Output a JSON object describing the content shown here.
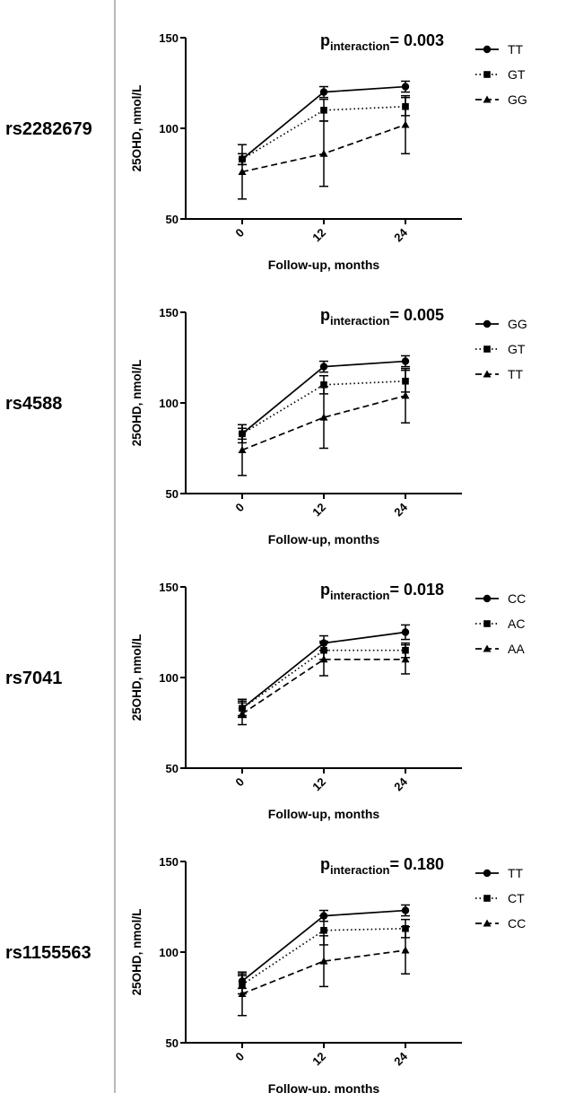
{
  "chart_data": [
    {
      "type": "line",
      "snp": "rs2282679",
      "p_label": "p",
      "p_sub": "interaction",
      "p_value": "= 0.003",
      "ylabel": "25OHD, nmol/L",
      "xlabel": "Follow-up, months",
      "categories": [
        "0",
        "12",
        "24"
      ],
      "ylim": [
        50,
        150
      ],
      "yticks": [
        "50",
        "100",
        "150"
      ],
      "series": [
        {
          "name": "TT",
          "marker": "circle",
          "dash": "solid",
          "values": [
            83,
            120,
            123
          ],
          "err": [
            3,
            3,
            3
          ]
        },
        {
          "name": "GT",
          "marker": "square",
          "dash": "dotted",
          "values": [
            83,
            110,
            112
          ],
          "err": [
            3,
            6,
            5
          ]
        },
        {
          "name": "GG",
          "marker": "triangle",
          "dash": "dashed",
          "values": [
            76,
            86,
            102
          ],
          "err": [
            15,
            18,
            16
          ]
        }
      ]
    },
    {
      "type": "line",
      "snp": "rs4588",
      "p_label": "p",
      "p_sub": "interaction",
      "p_value": "= 0.005",
      "ylabel": "25OHD, nmol/L",
      "xlabel": "Follow-up, months",
      "categories": [
        "0",
        "12",
        "24"
      ],
      "ylim": [
        50,
        150
      ],
      "yticks": [
        "50",
        "100",
        "150"
      ],
      "series": [
        {
          "name": "GG",
          "marker": "circle",
          "dash": "solid",
          "values": [
            83,
            120,
            123
          ],
          "err": [
            3,
            3,
            3
          ]
        },
        {
          "name": "GT",
          "marker": "square",
          "dash": "dotted",
          "values": [
            83,
            110,
            112
          ],
          "err": [
            5,
            5,
            6
          ]
        },
        {
          "name": "TT",
          "marker": "triangle",
          "dash": "dashed",
          "values": [
            74,
            92,
            104
          ],
          "err": [
            14,
            17,
            15
          ]
        }
      ]
    },
    {
      "type": "line",
      "snp": "rs7041",
      "p_label": "p",
      "p_sub": "interaction",
      "p_value": "= 0.018",
      "ylabel": "25OHD, nmol/L",
      "xlabel": "Follow-up, months",
      "categories": [
        "0",
        "12",
        "24"
      ],
      "ylim": [
        50,
        150
      ],
      "yticks": [
        "50",
        "100",
        "150"
      ],
      "series": [
        {
          "name": "CC",
          "marker": "circle",
          "dash": "solid",
          "values": [
            83,
            119,
            125
          ],
          "err": [
            4,
            4,
            4
          ]
        },
        {
          "name": "AC",
          "marker": "square",
          "dash": "dotted",
          "values": [
            83,
            115,
            115
          ],
          "err": [
            5,
            5,
            4
          ]
        },
        {
          "name": "AA",
          "marker": "triangle",
          "dash": "dashed",
          "values": [
            80,
            110,
            110
          ],
          "err": [
            6,
            9,
            8
          ]
        }
      ]
    },
    {
      "type": "line",
      "snp": "rs1155563",
      "p_label": "p",
      "p_sub": "interaction",
      "p_value": "= 0.180",
      "ylabel": "25OHD, nmol/L",
      "xlabel": "Follow-up, months",
      "categories": [
        "0",
        "12",
        "24"
      ],
      "ylim": [
        50,
        150
      ],
      "yticks": [
        "50",
        "100",
        "150"
      ],
      "series": [
        {
          "name": "TT",
          "marker": "circle",
          "dash": "solid",
          "values": [
            84,
            120,
            123
          ],
          "err": [
            4,
            3,
            3
          ]
        },
        {
          "name": "CT",
          "marker": "square",
          "dash": "dotted",
          "values": [
            82,
            112,
            113
          ],
          "err": [
            5,
            8,
            5
          ]
        },
        {
          "name": "CC",
          "marker": "triangle",
          "dash": "dashed",
          "values": [
            77,
            95,
            101
          ],
          "err": [
            12,
            14,
            13
          ]
        }
      ]
    }
  ]
}
